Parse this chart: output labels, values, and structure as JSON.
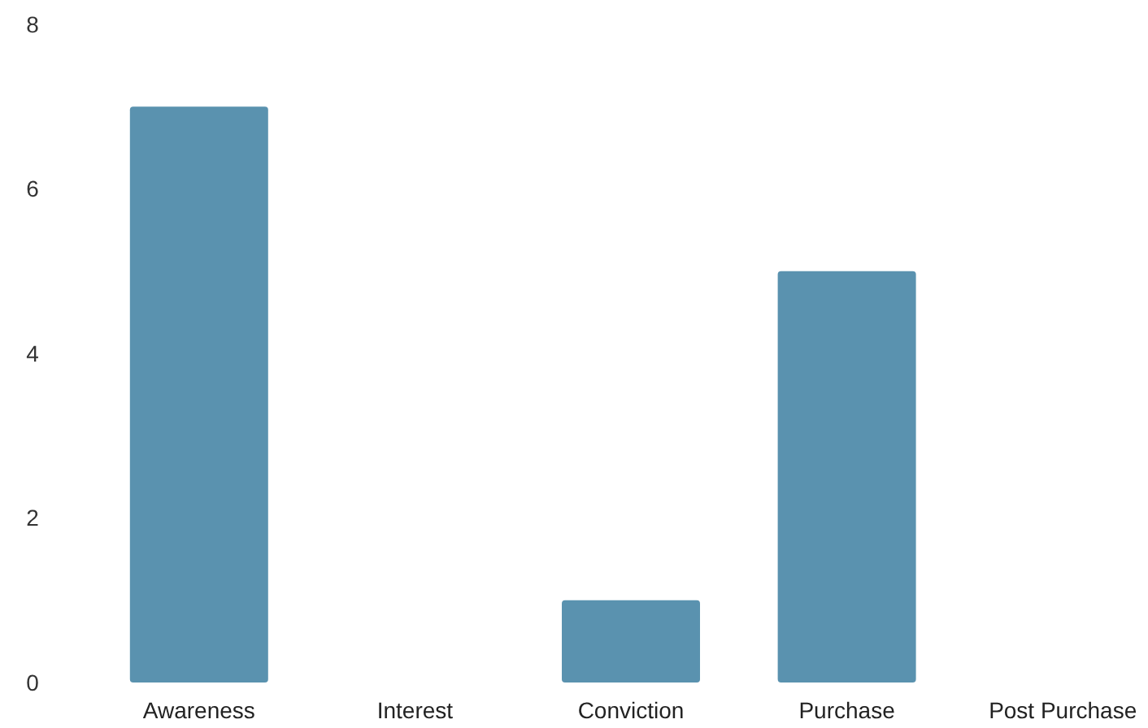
{
  "chart_data": {
    "type": "bar",
    "categories": [
      "Awareness",
      "Interest",
      "Conviction",
      "Purchase",
      "Post Purchase"
    ],
    "values": [
      7,
      0,
      1,
      5,
      0
    ],
    "color": "#5a92af",
    "ylim": [
      0,
      8
    ],
    "yticks": [
      0,
      2,
      4,
      6,
      8
    ],
    "grid": false
  }
}
